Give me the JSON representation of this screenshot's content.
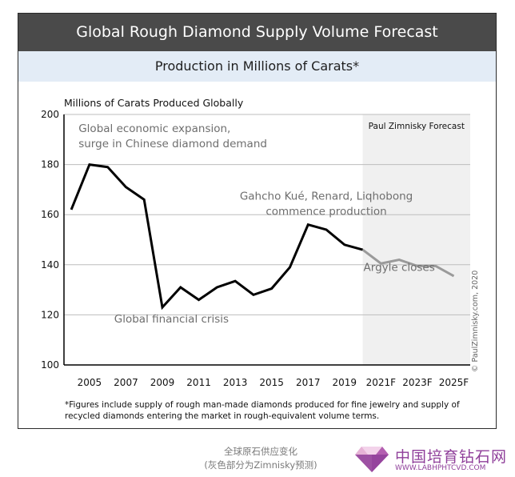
{
  "header": {
    "title": "Global Rough Diamond Supply Volume Forecast",
    "subtitle": "Production in Millions of Carats*"
  },
  "footnote": "*Figures include supply of rough man-made diamonds produced for fine jewelry and supply of recycled diamonds entering the market in rough-equivalent volume terms.",
  "credit": "© PaulZimnisky.com, 2020",
  "caption_cn": [
    "全球原石供应变化",
    "(灰色部分为Zimnisky预测)"
  ],
  "watermark": {
    "title": "中国培育钻石网",
    "url": "WWW.LABHPHTCVD.COM",
    "logo_icon": "diamond-logo-icon"
  },
  "colors": {
    "historical": "#000000",
    "forecast": "#9a9a9a",
    "forecast_region": "#f0f0f0",
    "header_bg": "#4a4a4a",
    "subheader_bg": "#e3ecf6",
    "watermark": "#8f3f9a"
  },
  "chart_data": {
    "type": "line",
    "title": "",
    "ylabel": "Millions of Carats Produced Globally",
    "xlabel": "",
    "ylim": [
      100,
      200
    ],
    "y_ticks": [
      100,
      120,
      140,
      160,
      180,
      200
    ],
    "x_tick_labels": [
      "2005",
      "2007",
      "2009",
      "2011",
      "2013",
      "2015",
      "2017",
      "2019",
      "2021F",
      "2023F",
      "2025F"
    ],
    "grid": "horizontal",
    "forecast_label": "Paul Zimnisky Forecast",
    "forecast_start": 2020,
    "series": [
      {
        "style": "historical",
        "x": [
          2004,
          2005,
          2006,
          2007,
          2008,
          2009,
          2010,
          2011,
          2012,
          2013,
          2014,
          2015,
          2016,
          2017,
          2018,
          2019,
          2020
        ],
        "y": [
          162,
          180,
          179,
          171,
          166,
          123,
          131,
          126,
          131,
          133.5,
          128,
          130.5,
          139,
          156,
          154,
          148,
          146
        ]
      },
      {
        "style": "forecast",
        "x": [
          2020,
          2021,
          2022,
          2023,
          2024,
          2025
        ],
        "y": [
          146,
          140.5,
          142,
          139.5,
          139.5,
          135.5
        ]
      }
    ],
    "annotations": [
      {
        "lines": [
          "Global economic expansion,",
          "surge in Chinese diamond demand"
        ],
        "x": 2004.4,
        "y": 193,
        "align": "start"
      },
      {
        "lines": [
          "Gahcho Kué, Renard, Liqhobong",
          "commence production"
        ],
        "x": 2018.0,
        "y": 166,
        "align": "middle"
      },
      {
        "lines": [
          "Argyle closes"
        ],
        "x": 2022.0,
        "y": 137.5,
        "align": "middle"
      },
      {
        "lines": [
          "Global financial crisis"
        ],
        "x": 2009.5,
        "y": 117,
        "align": "middle"
      }
    ]
  }
}
